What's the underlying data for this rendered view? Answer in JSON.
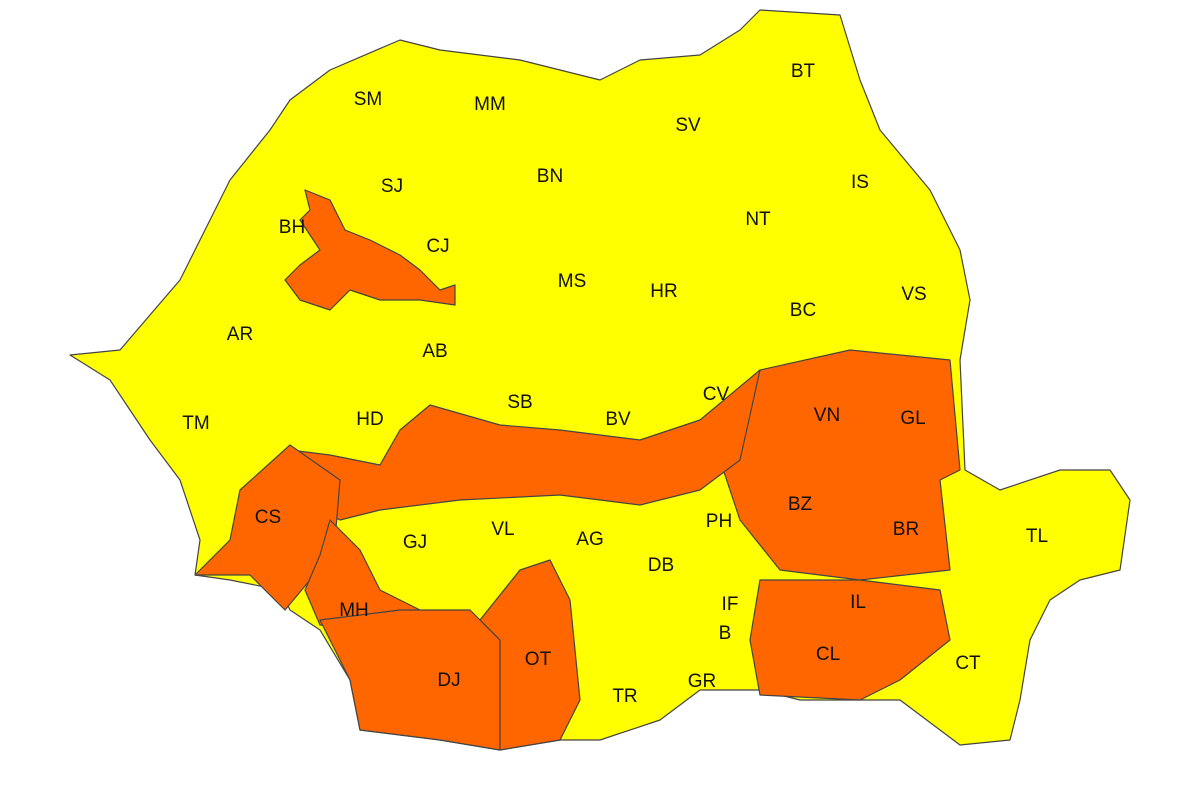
{
  "colors": {
    "yellow_warning": "#FFFF00",
    "orange_warning": "#FF6600",
    "border": "#444444"
  },
  "counties": [
    {
      "code": "SM",
      "level": "yellow"
    },
    {
      "code": "MM",
      "level": "yellow"
    },
    {
      "code": "BT",
      "level": "yellow"
    },
    {
      "code": "SV",
      "level": "yellow"
    },
    {
      "code": "SJ",
      "level": "yellow"
    },
    {
      "code": "BN",
      "level": "yellow"
    },
    {
      "code": "IS",
      "level": "yellow"
    },
    {
      "code": "BH",
      "level": "yellow/orange"
    },
    {
      "code": "CJ",
      "level": "yellow/orange"
    },
    {
      "code": "NT",
      "level": "yellow"
    },
    {
      "code": "MS",
      "level": "yellow"
    },
    {
      "code": "HR",
      "level": "yellow"
    },
    {
      "code": "VS",
      "level": "yellow"
    },
    {
      "code": "AR",
      "level": "yellow"
    },
    {
      "code": "BC",
      "level": "yellow"
    },
    {
      "code": "AB",
      "level": "yellow/orange"
    },
    {
      "code": "SB",
      "level": "yellow/orange"
    },
    {
      "code": "CV",
      "level": "yellow/orange"
    },
    {
      "code": "VN",
      "level": "orange"
    },
    {
      "code": "GL",
      "level": "orange"
    },
    {
      "code": "TM",
      "level": "yellow"
    },
    {
      "code": "HD",
      "level": "yellow/orange"
    },
    {
      "code": "BV",
      "level": "yellow/orange"
    },
    {
      "code": "BZ",
      "level": "orange"
    },
    {
      "code": "CS",
      "level": "orange"
    },
    {
      "code": "TL",
      "level": "yellow"
    },
    {
      "code": "GJ",
      "level": "yellow/orange"
    },
    {
      "code": "VL",
      "level": "yellow/orange"
    },
    {
      "code": "AG",
      "level": "yellow/orange"
    },
    {
      "code": "PH",
      "level": "yellow/orange"
    },
    {
      "code": "BR",
      "level": "orange"
    },
    {
      "code": "DB",
      "level": "yellow"
    },
    {
      "code": "IF",
      "level": "yellow"
    },
    {
      "code": "MH",
      "level": "orange"
    },
    {
      "code": "IL",
      "level": "orange"
    },
    {
      "code": "B",
      "level": "yellow"
    },
    {
      "code": "OT",
      "level": "orange"
    },
    {
      "code": "DJ",
      "level": "orange"
    },
    {
      "code": "CL",
      "level": "orange"
    },
    {
      "code": "CT",
      "level": "yellow"
    },
    {
      "code": "TR",
      "level": "yellow"
    },
    {
      "code": "GR",
      "level": "yellow"
    }
  ]
}
